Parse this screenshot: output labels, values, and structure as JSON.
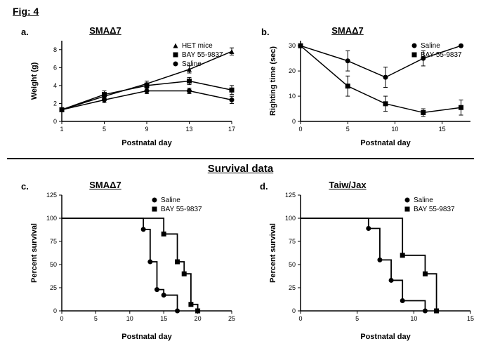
{
  "figureLabel": "Fig: 4",
  "sectionTitle": "Survival data",
  "panels": {
    "a": {
      "label": "a.",
      "title": "SMAΔ7",
      "type": "line-scatter",
      "xlabel": "Postnatal day",
      "ylabel": "Weight (g)",
      "xlim": [
        1,
        17
      ],
      "ylim": [
        0,
        9
      ],
      "xticks": [
        1,
        5,
        9,
        13,
        17
      ],
      "yticks": [
        0,
        2,
        4,
        6,
        8
      ],
      "series": [
        {
          "name": "HET mice",
          "marker": "triangle",
          "color": "#000000",
          "x": [
            1,
            5,
            9,
            13,
            17
          ],
          "y": [
            1.3,
            2.8,
            4.2,
            5.8,
            7.8
          ],
          "err": [
            0.2,
            0.3,
            0.3,
            0.4,
            0.4
          ]
        },
        {
          "name": "BAY 55-9837",
          "marker": "square",
          "color": "#000000",
          "x": [
            1,
            5,
            9,
            13,
            17
          ],
          "y": [
            1.3,
            3.0,
            4.0,
            4.5,
            3.5
          ],
          "err": [
            0.2,
            0.4,
            0.3,
            0.4,
            0.5
          ]
        },
        {
          "name": "Saline",
          "marker": "circle",
          "color": "#000000",
          "x": [
            1,
            5,
            9,
            13,
            17
          ],
          "y": [
            1.3,
            2.4,
            3.4,
            3.4,
            2.4
          ],
          "err": [
            0.2,
            0.3,
            0.3,
            0.3,
            0.4
          ]
        }
      ]
    },
    "b": {
      "label": "b.",
      "title": "SMAΔ7",
      "type": "line-scatter",
      "xlabel": "Postnatal day",
      "ylabel": "Righting time (sec)",
      "xlim": [
        0,
        18
      ],
      "ylim": [
        0,
        32
      ],
      "xticks": [
        0,
        5,
        10,
        15
      ],
      "yticks": [
        0,
        10,
        20,
        30
      ],
      "series": [
        {
          "name": "Saline",
          "marker": "circle",
          "color": "#000000",
          "x": [
            0,
            5,
            9,
            13,
            17
          ],
          "y": [
            30,
            24,
            17.5,
            25,
            30
          ],
          "err": [
            0,
            4,
            4,
            3,
            0
          ]
        },
        {
          "name": "BAY 55-9837",
          "marker": "square",
          "color": "#000000",
          "x": [
            0,
            5,
            9,
            13,
            17
          ],
          "y": [
            30,
            14,
            7,
            3.5,
            5.5
          ],
          "err": [
            0,
            4,
            3,
            1.5,
            3
          ]
        }
      ]
    },
    "c": {
      "label": "c.",
      "title": "SMAΔ7",
      "type": "survival",
      "xlabel": "Postnatal day",
      "ylabel": "Percent survival",
      "xlim": [
        0,
        25
      ],
      "ylim": [
        0,
        125
      ],
      "xticks": [
        0,
        5,
        10,
        15,
        20,
        25
      ],
      "yticks": [
        0,
        25,
        50,
        75,
        100,
        125
      ],
      "series": [
        {
          "name": "Saline",
          "marker": "circle",
          "color": "#000000",
          "steps": [
            [
              0,
              100
            ],
            [
              12,
              100
            ],
            [
              12,
              88
            ],
            [
              13,
              88
            ],
            [
              13,
              53
            ],
            [
              14,
              53
            ],
            [
              14,
              23
            ],
            [
              15,
              23
            ],
            [
              15,
              17
            ],
            [
              17,
              17
            ],
            [
              17,
              0
            ]
          ]
        },
        {
          "name": "BAY 55-9837",
          "marker": "square",
          "color": "#000000",
          "steps": [
            [
              0,
              100
            ],
            [
              15,
              100
            ],
            [
              15,
              83
            ],
            [
              17,
              83
            ],
            [
              17,
              53
            ],
            [
              18,
              53
            ],
            [
              18,
              40
            ],
            [
              19,
              40
            ],
            [
              19,
              7
            ],
            [
              20,
              7
            ],
            [
              20,
              0
            ]
          ]
        }
      ]
    },
    "d": {
      "label": "d.",
      "title": "Taiw/Jax",
      "type": "survival",
      "xlabel": "Postnatal day",
      "ylabel": "Percent survival",
      "xlim": [
        0,
        15
      ],
      "ylim": [
        0,
        125
      ],
      "xticks": [
        0,
        5,
        10,
        15
      ],
      "yticks": [
        0,
        25,
        50,
        75,
        100,
        125
      ],
      "series": [
        {
          "name": "Saline",
          "marker": "circle",
          "color": "#000000",
          "steps": [
            [
              0,
              100
            ],
            [
              6,
              100
            ],
            [
              6,
              89
            ],
            [
              7,
              89
            ],
            [
              7,
              55
            ],
            [
              8,
              55
            ],
            [
              8,
              33
            ],
            [
              9,
              33
            ],
            [
              9,
              11
            ],
            [
              11,
              11
            ],
            [
              11,
              0
            ]
          ]
        },
        {
          "name": "BAY 55-9837",
          "marker": "square",
          "color": "#000000",
          "steps": [
            [
              0,
              100
            ],
            [
              9,
              100
            ],
            [
              9,
              60
            ],
            [
              11,
              60
            ],
            [
              11,
              40
            ],
            [
              12,
              40
            ],
            [
              12,
              0
            ]
          ]
        }
      ]
    }
  },
  "colors": {
    "axis": "#000000",
    "bg": "#ffffff"
  },
  "fontsize": {
    "axis": 11,
    "tick": 9,
    "title": 13,
    "legend": 10
  }
}
